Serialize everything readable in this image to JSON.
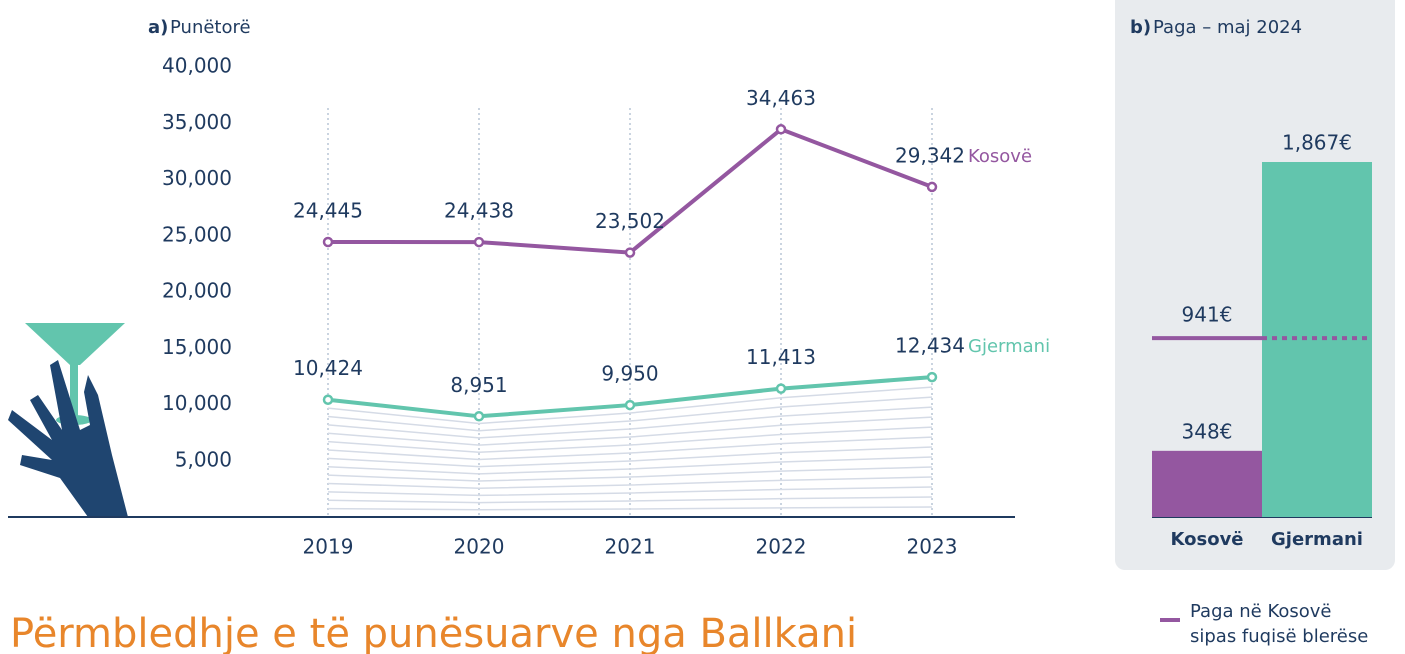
{
  "chart_data": [
    {
      "type": "line",
      "panel": "a)",
      "title": "Punëtorë",
      "categories": [
        "2019",
        "2020",
        "2021",
        "2022",
        "2023"
      ],
      "series": [
        {
          "name": "Kosovë",
          "color": "#9457a0",
          "values": [
            24445,
            24438,
            23502,
            34463,
            29342
          ],
          "value_labels": [
            "24,445",
            "24,438",
            "23,502",
            "34,463",
            "29,342"
          ]
        },
        {
          "name": "Gjermani",
          "color": "#62c5ad",
          "values": [
            10424,
            8951,
            9950,
            11413,
            12434
          ],
          "value_labels": [
            "10,424",
            "8,951",
            "9,950",
            "11,413",
            "12,434"
          ]
        }
      ],
      "ylim": [
        0,
        40000
      ],
      "yticks": [
        {
          "value": 5000,
          "label": "5,000"
        },
        {
          "value": 10000,
          "label": "10,000"
        },
        {
          "value": 15000,
          "label": "15,000"
        },
        {
          "value": 20000,
          "label": "20,000"
        },
        {
          "value": 25000,
          "label": "25,000"
        },
        {
          "value": 30000,
          "label": "30,000"
        },
        {
          "value": 35000,
          "label": "35,000"
        },
        {
          "value": 40000,
          "label": "40,000"
        }
      ]
    },
    {
      "type": "bar",
      "panel": "b)",
      "title": "Paga – maj 2024",
      "categories": [
        "Kosovë",
        "Gjermani"
      ],
      "values": [
        348,
        1867
      ],
      "value_labels": [
        "348€",
        "1,867€"
      ],
      "colors": [
        "#9457a0",
        "#62c5ad"
      ],
      "reference_line": {
        "value": 941,
        "label": "941€",
        "color": "#9457a0"
      },
      "reference_legend": [
        "Paga në Kosovë",
        "sipas fuqisë blerëse"
      ]
    }
  ],
  "heading": "Përmbledhje e të punësuarve nga Ballkani"
}
